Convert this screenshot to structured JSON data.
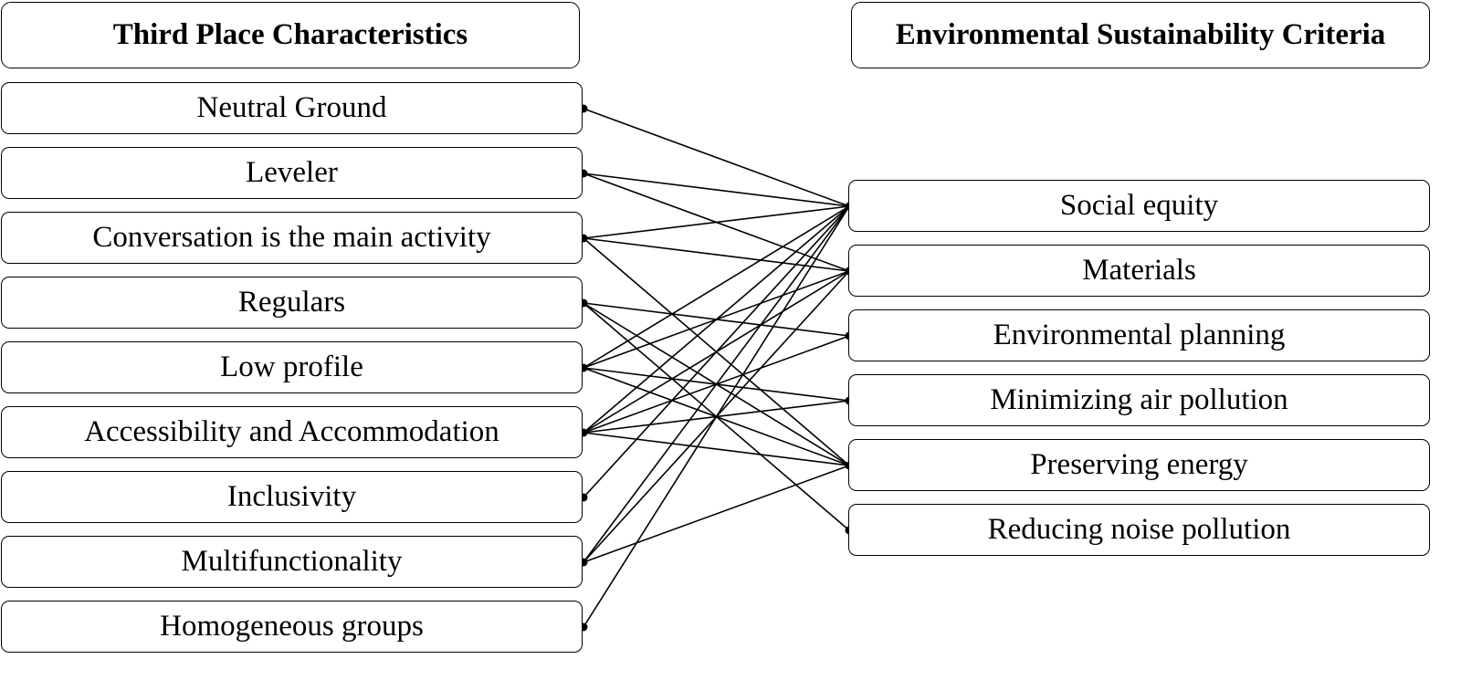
{
  "left_header": "Third Place Characteristics",
  "right_header": "Environmental Sustainability Criteria",
  "left_items": [
    "Neutral Ground",
    "Leveler",
    "Conversation is the main activity",
    "Regulars",
    "Low profile",
    "Accessibility and Accommodation",
    "Inclusivity",
    "Multifunctionality",
    "Homogeneous  groups"
  ],
  "right_items": [
    "Social equity",
    "Materials",
    "Environmental planning",
    "Minimizing air pollution",
    "Preserving energy",
    "Reducing noise pollution"
  ],
  "links": [
    [
      "Neutral Ground",
      "Social equity"
    ],
    [
      "Leveler",
      "Social equity"
    ],
    [
      "Leveler",
      "Materials"
    ],
    [
      "Conversation is the main activity",
      "Social equity"
    ],
    [
      "Conversation is the main activity",
      "Materials"
    ],
    [
      "Conversation is the main activity",
      "Preserving energy"
    ],
    [
      "Regulars",
      "Environmental planning"
    ],
    [
      "Regulars",
      "Preserving energy"
    ],
    [
      "Regulars",
      "Reducing noise pollution"
    ],
    [
      "Low profile",
      "Social equity"
    ],
    [
      "Low profile",
      "Materials"
    ],
    [
      "Low profile",
      "Minimizing air pollution"
    ],
    [
      "Low profile",
      "Preserving energy"
    ],
    [
      "Accessibility and Accommodation",
      "Social equity"
    ],
    [
      "Accessibility and Accommodation",
      "Materials"
    ],
    [
      "Accessibility and Accommodation",
      "Environmental planning"
    ],
    [
      "Accessibility and Accommodation",
      "Minimizing air pollution"
    ],
    [
      "Accessibility and Accommodation",
      "Preserving energy"
    ],
    [
      "Inclusivity",
      "Social equity"
    ],
    [
      "Multifunctionality",
      "Social equity"
    ],
    [
      "Multifunctionality",
      "Materials"
    ],
    [
      "Multifunctionality",
      "Preserving energy"
    ],
    [
      "Homogeneous  groups",
      "Social equity"
    ]
  ],
  "colors": {
    "line": "#000000",
    "box_border": "#000000",
    "background": "#ffffff"
  }
}
